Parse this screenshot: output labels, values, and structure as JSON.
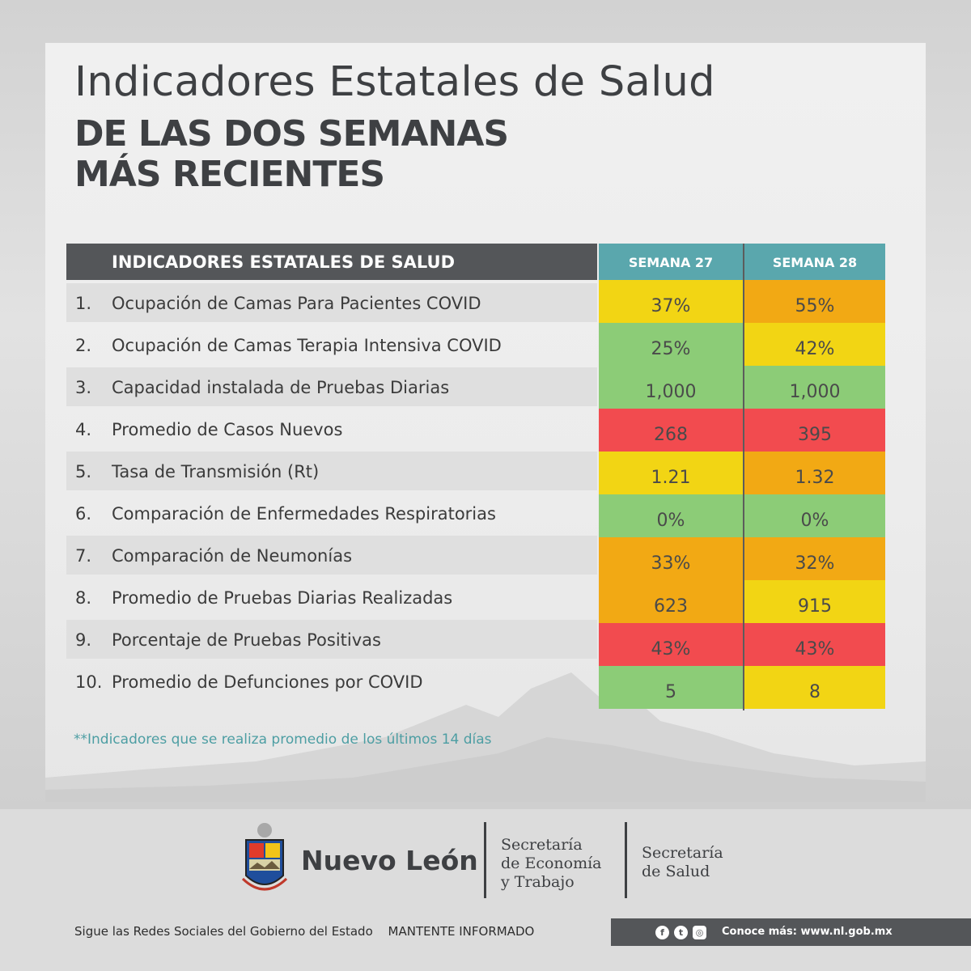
{
  "header": {
    "title_line1": "Indicadores Estatales de Salud",
    "title_line2": "DE LAS DOS SEMANAS",
    "title_line3": "MÁS RECIENTES"
  },
  "table": {
    "header_label": "INDICADORES ESTATALES DE SALUD",
    "week1_label": "SEMANA 27",
    "week2_label": "SEMANA 28",
    "rows": [
      {
        "num": "1.",
        "label": "Ocupación de Camas Para Pacientes COVID",
        "w27": "37%",
        "w28": "55%",
        "c27": "#f2d514",
        "c28": "#f2a914"
      },
      {
        "num": "2.",
        "label": "Ocupación de Camas Terapia Intensiva COVID",
        "w27": "25%",
        "w28": "42%",
        "c27": "#8ccc77",
        "c28": "#f2d514"
      },
      {
        "num": "3.",
        "label": "Capacidad instalada de Pruebas Diarias",
        "w27": "1,000",
        "w28": "1,000",
        "c27": "#8ccc77",
        "c28": "#8ccc77"
      },
      {
        "num": "4.",
        "label": "Promedio de Casos Nuevos",
        "w27": "268",
        "w28": "395",
        "c27": "#f24b4f",
        "c28": "#f24b4f"
      },
      {
        "num": "5.",
        "label": "Tasa de Transmisión (Rt)",
        "w27": "1.21",
        "w28": "1.32",
        "c27": "#f2d514",
        "c28": "#f2a914"
      },
      {
        "num": "6.",
        "label": "Comparación de Enfermedades Respiratorias",
        "w27": "0%",
        "w28": "0%",
        "c27": "#8ccc77",
        "c28": "#8ccc77"
      },
      {
        "num": "7.",
        "label": "Comparación de Neumonías",
        "w27": "33%",
        "w28": "32%",
        "c27": "#f2a914",
        "c28": "#f2a914"
      },
      {
        "num": "8.",
        "label": "Promedio de Pruebas Diarias Realizadas",
        "w27": "623",
        "w28": "915",
        "c27": "#f2a914",
        "c28": "#f2d514"
      },
      {
        "num": "9.",
        "label": "Porcentaje de Pruebas Positivas",
        "w27": "43%",
        "w28": "43%",
        "c27": "#f24b4f",
        "c28": "#f24b4f"
      },
      {
        "num": "10.",
        "label": "Promedio de Defunciones por COVID",
        "w27": "5",
        "w28": "8",
        "c27": "#8ccc77",
        "c28": "#f2d514"
      }
    ],
    "note": "**Indicadores que se realiza promedio de los últimos 14 días"
  },
  "footer": {
    "brand": "Nuevo León",
    "dept1": [
      "Secretaría",
      "de Economía",
      "y Trabajo"
    ],
    "dept2": [
      "Secretaría",
      "de Salud"
    ],
    "social_text": "Sigue las Redes Sociales del Gobierno del Estado",
    "inform_text": "MANTENTE INFORMADO",
    "url_text": "Conoce más: www.nl.gob.mx",
    "social_icons": [
      "facebook-icon",
      "twitter-icon",
      "instagram-icon"
    ]
  },
  "colors": {
    "green": "#8ccc77",
    "yellow": "#f2d514",
    "orange": "#f2a914",
    "red": "#f24b4f",
    "teal": "#5aa7ad",
    "dark_gray": "#545659"
  }
}
